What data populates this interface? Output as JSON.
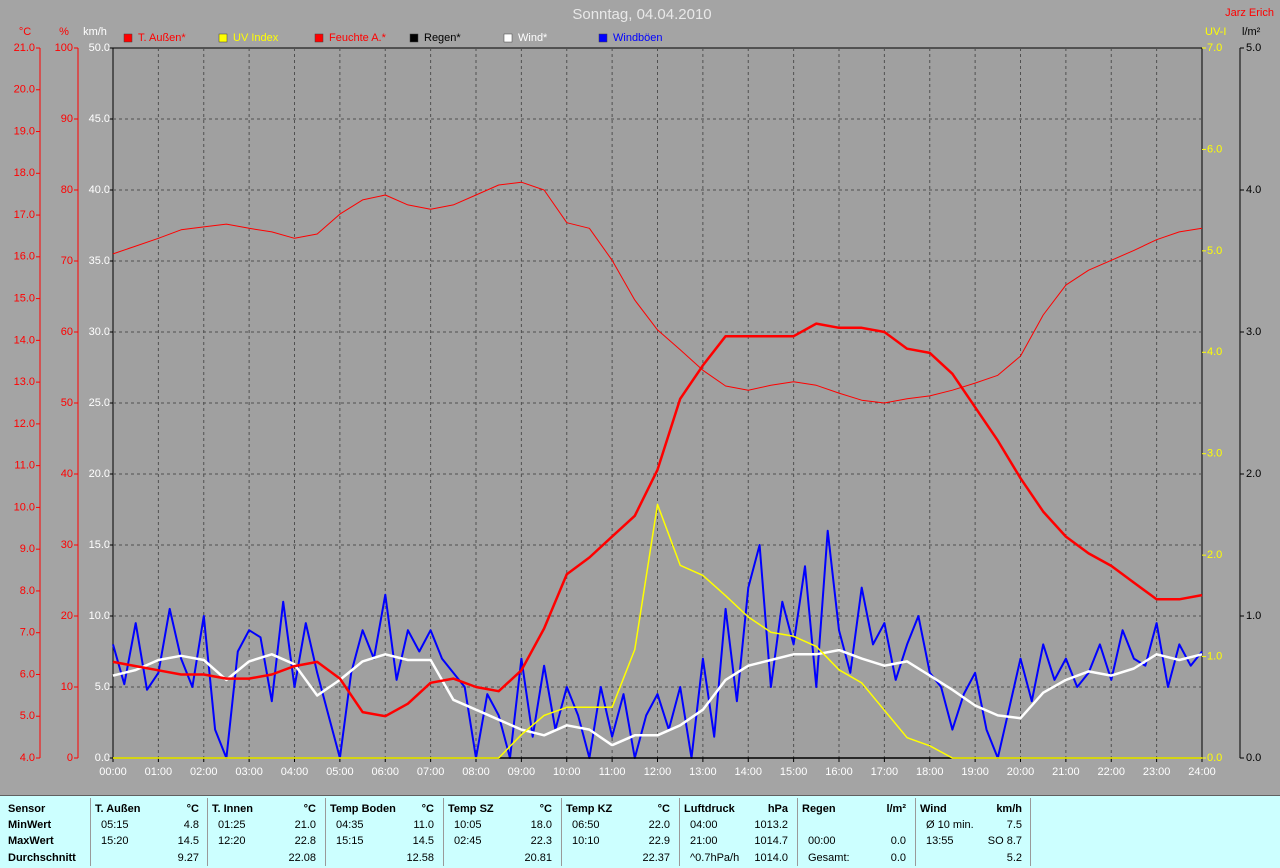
{
  "chart_data": {
    "type": "line",
    "title": "Sonntag, 04.04.2010",
    "author": "Jarz Erich",
    "grid": true,
    "xlim": [
      0,
      24
    ],
    "xticks": [
      {
        "value": 0,
        "label": "00:00"
      },
      {
        "value": 1,
        "label": "01:00"
      },
      {
        "value": 2,
        "label": "02:00"
      },
      {
        "value": 3,
        "label": "03:00"
      },
      {
        "value": 4,
        "label": "04:00"
      },
      {
        "value": 5,
        "label": "05:00"
      },
      {
        "value": 6,
        "label": "06:00"
      },
      {
        "value": 7,
        "label": "07:00"
      },
      {
        "value": 8,
        "label": "08:00"
      },
      {
        "value": 9,
        "label": "09:00"
      },
      {
        "value": 10,
        "label": "10:00"
      },
      {
        "value": 11,
        "label": "11:00"
      },
      {
        "value": 12,
        "label": "12:00"
      },
      {
        "value": 13,
        "label": "13:00"
      },
      {
        "value": 14,
        "label": "14:00"
      },
      {
        "value": 15,
        "label": "15:00"
      },
      {
        "value": 16,
        "label": "16:00"
      },
      {
        "value": 17,
        "label": "17:00"
      },
      {
        "value": 18,
        "label": "18:00"
      },
      {
        "value": 19,
        "label": "19:00"
      },
      {
        "value": 20,
        "label": "20:00"
      },
      {
        "value": 21,
        "label": "21:00"
      },
      {
        "value": 22,
        "label": "22:00"
      },
      {
        "value": 23,
        "label": "23:00"
      },
      {
        "value": 24,
        "label": "24:00"
      }
    ],
    "axes": [
      {
        "label": "°C",
        "color": "#ff0000",
        "lim": [
          4,
          21
        ],
        "ticks": [
          {
            "value": 4,
            "label": "4.0"
          },
          {
            "value": 5,
            "label": "5.0"
          },
          {
            "value": 6,
            "label": "6.0"
          },
          {
            "value": 7,
            "label": "7.0"
          },
          {
            "value": 8,
            "label": "8.0"
          },
          {
            "value": 9,
            "label": "9.0"
          },
          {
            "value": 10,
            "label": "10.0"
          },
          {
            "value": 11,
            "label": "11.0"
          },
          {
            "value": 12,
            "label": "12.0"
          },
          {
            "value": 13,
            "label": "13.0"
          },
          {
            "value": 14,
            "label": "14.0"
          },
          {
            "value": 15,
            "label": "15.0"
          },
          {
            "value": 16,
            "label": "16.0"
          },
          {
            "value": 17,
            "label": "17.0"
          },
          {
            "value": 18,
            "label": "18.0"
          },
          {
            "value": 19,
            "label": "19.0"
          },
          {
            "value": 20,
            "label": "20.0"
          },
          {
            "value": 21,
            "label": "21.0"
          }
        ]
      },
      {
        "label": "%",
        "color": "#ff0000",
        "lim": [
          0,
          100
        ],
        "ticks": [
          0,
          10,
          20,
          30,
          40,
          50,
          60,
          70,
          80,
          90,
          100
        ]
      },
      {
        "label": "km/h",
        "color": "#ffffff",
        "lim": [
          0,
          50
        ],
        "ticks": [
          {
            "value": 0,
            "label": "0.0"
          },
          {
            "value": 5,
            "label": "5.0"
          },
          {
            "value": 10,
            "label": "10.0"
          },
          {
            "value": 15,
            "label": "15.0"
          },
          {
            "value": 20,
            "label": "20.0"
          },
          {
            "value": 25,
            "label": "25.0"
          },
          {
            "value": 30,
            "label": "30.0"
          },
          {
            "value": 35,
            "label": "35.0"
          },
          {
            "value": 40,
            "label": "40.0"
          },
          {
            "value": 45,
            "label": "45.0"
          },
          {
            "value": 50,
            "label": "50.0"
          }
        ]
      },
      {
        "label": "UV-I",
        "color": "#ffff00",
        "lim": [
          0,
          7
        ],
        "ticks": [
          {
            "value": 0,
            "label": "0.0"
          },
          {
            "value": 1,
            "label": "1.0"
          },
          {
            "value": 2,
            "label": "2.0"
          },
          {
            "value": 3,
            "label": "3.0"
          },
          {
            "value": 4,
            "label": "4.0"
          },
          {
            "value": 5,
            "label": "5.0"
          },
          {
            "value": 6,
            "label": "6.0"
          },
          {
            "value": 7,
            "label": "7.0"
          }
        ]
      },
      {
        "label": "l/m²",
        "color": "#000000",
        "lim": [
          0,
          5
        ],
        "ticks": [
          {
            "value": 0,
            "label": "0.0"
          },
          {
            "value": 1,
            "label": "1.0"
          },
          {
            "value": 2,
            "label": "2.0"
          },
          {
            "value": 3,
            "label": "3.0"
          },
          {
            "value": 4,
            "label": "4.0"
          },
          {
            "value": 5,
            "label": "5.0"
          }
        ]
      }
    ],
    "x": [
      0,
      0.5,
      1,
      1.5,
      2,
      2.5,
      3,
      3.5,
      4,
      4.5,
      5,
      5.5,
      6,
      6.5,
      7,
      7.5,
      8,
      8.5,
      9,
      9.5,
      10,
      10.5,
      11,
      11.5,
      12,
      12.5,
      13,
      13.5,
      14,
      14.5,
      15,
      15.5,
      16,
      16.5,
      17,
      17.5,
      18,
      18.5,
      19,
      19.5,
      20,
      20.5,
      21,
      21.5,
      22,
      22.5,
      23,
      23.5,
      24
    ],
    "series": [
      {
        "name": "T. Außen*",
        "color": "#ff0000",
        "axis": 0,
        "values": [
          6.3,
          6.2,
          6.1,
          6.0,
          6.0,
          5.9,
          5.9,
          6.0,
          6.2,
          6.3,
          5.9,
          5.1,
          5.0,
          5.3,
          5.8,
          5.9,
          5.7,
          5.6,
          6.1,
          7.1,
          8.4,
          8.8,
          9.3,
          9.8,
          10.9,
          12.6,
          13.4,
          14.1,
          14.1,
          14.1,
          14.1,
          14.4,
          14.3,
          14.3,
          14.2,
          13.8,
          13.7,
          13.2,
          12.4,
          11.6,
          10.7,
          9.9,
          9.3,
          8.9,
          8.6,
          8.2,
          7.8,
          7.8,
          7.9
        ]
      },
      {
        "name": "UV Index",
        "color": "#ffff00",
        "axis": 3,
        "values": [
          0,
          0,
          0,
          0,
          0,
          0,
          0,
          0,
          0,
          0,
          0,
          0,
          0,
          0,
          0,
          0,
          0,
          0,
          0.23,
          0.42,
          0.5,
          0.5,
          0.5,
          1.07,
          2.5,
          1.9,
          1.8,
          1.6,
          1.39,
          1.24,
          1.2,
          1.1,
          0.87,
          0.74,
          0.47,
          0.2,
          0.12,
          0,
          0,
          0,
          0,
          0,
          0,
          0,
          0,
          0,
          0,
          0,
          0
        ]
      },
      {
        "name": "Feuchte A.*",
        "color": "#ff0000",
        "axis": 1,
        "values": [
          71.0,
          72.1,
          73.2,
          74.4,
          74.8,
          75.2,
          74.6,
          74.1,
          73.2,
          73.8,
          76.6,
          78.6,
          79.3,
          77.9,
          77.3,
          77.9,
          79.3,
          80.7,
          81.1,
          80.0,
          75.4,
          74.6,
          70.1,
          64.5,
          60.3,
          57.5,
          54.6,
          52.4,
          51.8,
          52.5,
          53.0,
          52.5,
          51.4,
          50.4,
          50.0,
          50.6,
          51.0,
          51.8,
          52.8,
          53.9,
          56.6,
          62.4,
          66.6,
          68.7,
          70.1,
          71.5,
          73.0,
          74.1,
          74.6
        ]
      },
      {
        "name": "Regen*",
        "color": "#000000",
        "axis": 4,
        "values": [
          0,
          0,
          0,
          0,
          0,
          0,
          0,
          0,
          0,
          0,
          0,
          0,
          0,
          0,
          0,
          0,
          0,
          0,
          0,
          0,
          0,
          0,
          0,
          0,
          0,
          0,
          0,
          0,
          0,
          0,
          0,
          0,
          0,
          0,
          0,
          0,
          0,
          0,
          0,
          0,
          0,
          0,
          0,
          0,
          0,
          0,
          0,
          0,
          0
        ]
      },
      {
        "name": "Wind*",
        "color": "#ffffff",
        "axis": 2,
        "values": [
          5.8,
          6.2,
          6.9,
          7.2,
          6.9,
          5.5,
          6.8,
          7.3,
          6.6,
          4.4,
          5.5,
          6.8,
          7.3,
          6.9,
          6.9,
          4.1,
          3.4,
          2.7,
          2.0,
          1.6,
          2.3,
          2.0,
          0.9,
          1.6,
          1.6,
          2.3,
          3.4,
          5.5,
          6.5,
          6.9,
          7.3,
          7.3,
          7.6,
          7.0,
          6.5,
          6.8,
          5.8,
          4.8,
          3.7,
          3.0,
          2.8,
          4.6,
          5.5,
          6.1,
          5.8,
          6.3,
          7.3,
          6.9,
          7.3
        ]
      },
      {
        "name": "Windböen",
        "color": "#0000ff",
        "axis": 2,
        "x": [
          0,
          0.25,
          0.5,
          0.75,
          1,
          1.25,
          1.5,
          1.75,
          2,
          2.25,
          2.5,
          2.75,
          3,
          3.25,
          3.5,
          3.75,
          4,
          4.25,
          4.5,
          4.75,
          5,
          5.25,
          5.5,
          5.75,
          6,
          6.25,
          6.5,
          6.75,
          7,
          7.25,
          7.5,
          7.75,
          8,
          8.25,
          8.5,
          8.75,
          9,
          9.25,
          9.5,
          9.75,
          10,
          10.25,
          10.5,
          10.75,
          11,
          11.25,
          11.5,
          11.75,
          12,
          12.25,
          12.5,
          12.75,
          13,
          13.25,
          13.5,
          13.75,
          14,
          14.25,
          14.5,
          14.75,
          15,
          15.25,
          15.5,
          15.75,
          16,
          16.25,
          16.5,
          16.75,
          17,
          17.25,
          17.5,
          17.75,
          18,
          18.25,
          18.5,
          18.75,
          19,
          19.25,
          19.5,
          19.75,
          20,
          20.25,
          20.5,
          20.75,
          21,
          21.25,
          21.5,
          21.75,
          22,
          22.25,
          22.5,
          22.75,
          23,
          23.25,
          23.5,
          23.75,
          24
        ],
        "values": [
          8.0,
          5.2,
          9.5,
          4.8,
          6.0,
          10.5,
          7.0,
          5.0,
          10.0,
          2.0,
          0.0,
          7.5,
          9.0,
          8.5,
          4.0,
          11.0,
          5.0,
          9.5,
          6.0,
          3.0,
          0.0,
          6.0,
          9.0,
          7.0,
          11.5,
          5.5,
          9.0,
          7.5,
          9.0,
          7.0,
          6.0,
          5.0,
          0.0,
          4.5,
          3.0,
          0.0,
          7.0,
          1.5,
          6.5,
          2.0,
          5.0,
          3.0,
          0.0,
          5.0,
          1.5,
          4.5,
          0.0,
          3.0,
          4.5,
          2.0,
          5.0,
          0.0,
          7.0,
          1.5,
          10.5,
          4.0,
          12.0,
          15.0,
          5.0,
          11.0,
          8.0,
          13.5,
          5.0,
          16.0,
          9.0,
          6.0,
          12.0,
          8.0,
          9.5,
          5.5,
          8.0,
          10.0,
          6.0,
          5.0,
          2.0,
          4.5,
          6.0,
          2.0,
          0.0,
          3.5,
          7.0,
          4.0,
          8.0,
          5.5,
          7.0,
          5.0,
          6.0,
          8.0,
          5.5,
          9.0,
          7.0,
          6.5,
          9.5,
          5.0,
          8.0,
          6.5,
          7.5
        ]
      }
    ]
  },
  "table": {
    "row_labels": [
      "Sensor",
      "MinWert",
      "MaxWert",
      "Durchschnitt"
    ],
    "groups": [
      {
        "name": "T. Außen",
        "unit": "°C",
        "rows": [
          [
            "05:15",
            "4.8"
          ],
          [
            "15:20",
            "14.5"
          ],
          [
            null,
            "9.27"
          ]
        ]
      },
      {
        "name": "T. Innen",
        "unit": "°C",
        "rows": [
          [
            "01:25",
            "21.0"
          ],
          [
            "12:20",
            "22.8"
          ],
          [
            null,
            "22.08"
          ]
        ]
      },
      {
        "name": "Temp Boden",
        "unit": "°C",
        "rows": [
          [
            "04:35",
            "11.0"
          ],
          [
            "15:15",
            "14.5"
          ],
          [
            null,
            "12.58"
          ]
        ]
      },
      {
        "name": "Temp SZ",
        "unit": "°C",
        "rows": [
          [
            "10:05",
            "18.0"
          ],
          [
            "02:45",
            "22.3"
          ],
          [
            null,
            "20.81"
          ]
        ]
      },
      {
        "name": "Temp KZ",
        "unit": "°C",
        "rows": [
          [
            "06:50",
            "22.0"
          ],
          [
            "10:10",
            "22.9"
          ],
          [
            null,
            "22.37"
          ]
        ]
      },
      {
        "name": "Luftdruck",
        "unit": "hPa",
        "rows": [
          [
            "04:00",
            "1013.2"
          ],
          [
            "21:00",
            "1014.7"
          ],
          [
            "^0.7hPa/h",
            "1014.0"
          ]
        ]
      },
      {
        "name": "Regen",
        "unit": "l/m²",
        "rows": [
          [
            null,
            null
          ],
          [
            "00:00",
            "0.0"
          ],
          [
            "Gesamt:",
            "0.0"
          ]
        ]
      },
      {
        "name": "Wind",
        "unit": "km/h",
        "rows": [
          [
            "Ø 10 min.",
            "7.5"
          ],
          [
            "13:55",
            "SO 8.7"
          ],
          [
            null,
            "5.2"
          ]
        ]
      }
    ]
  }
}
